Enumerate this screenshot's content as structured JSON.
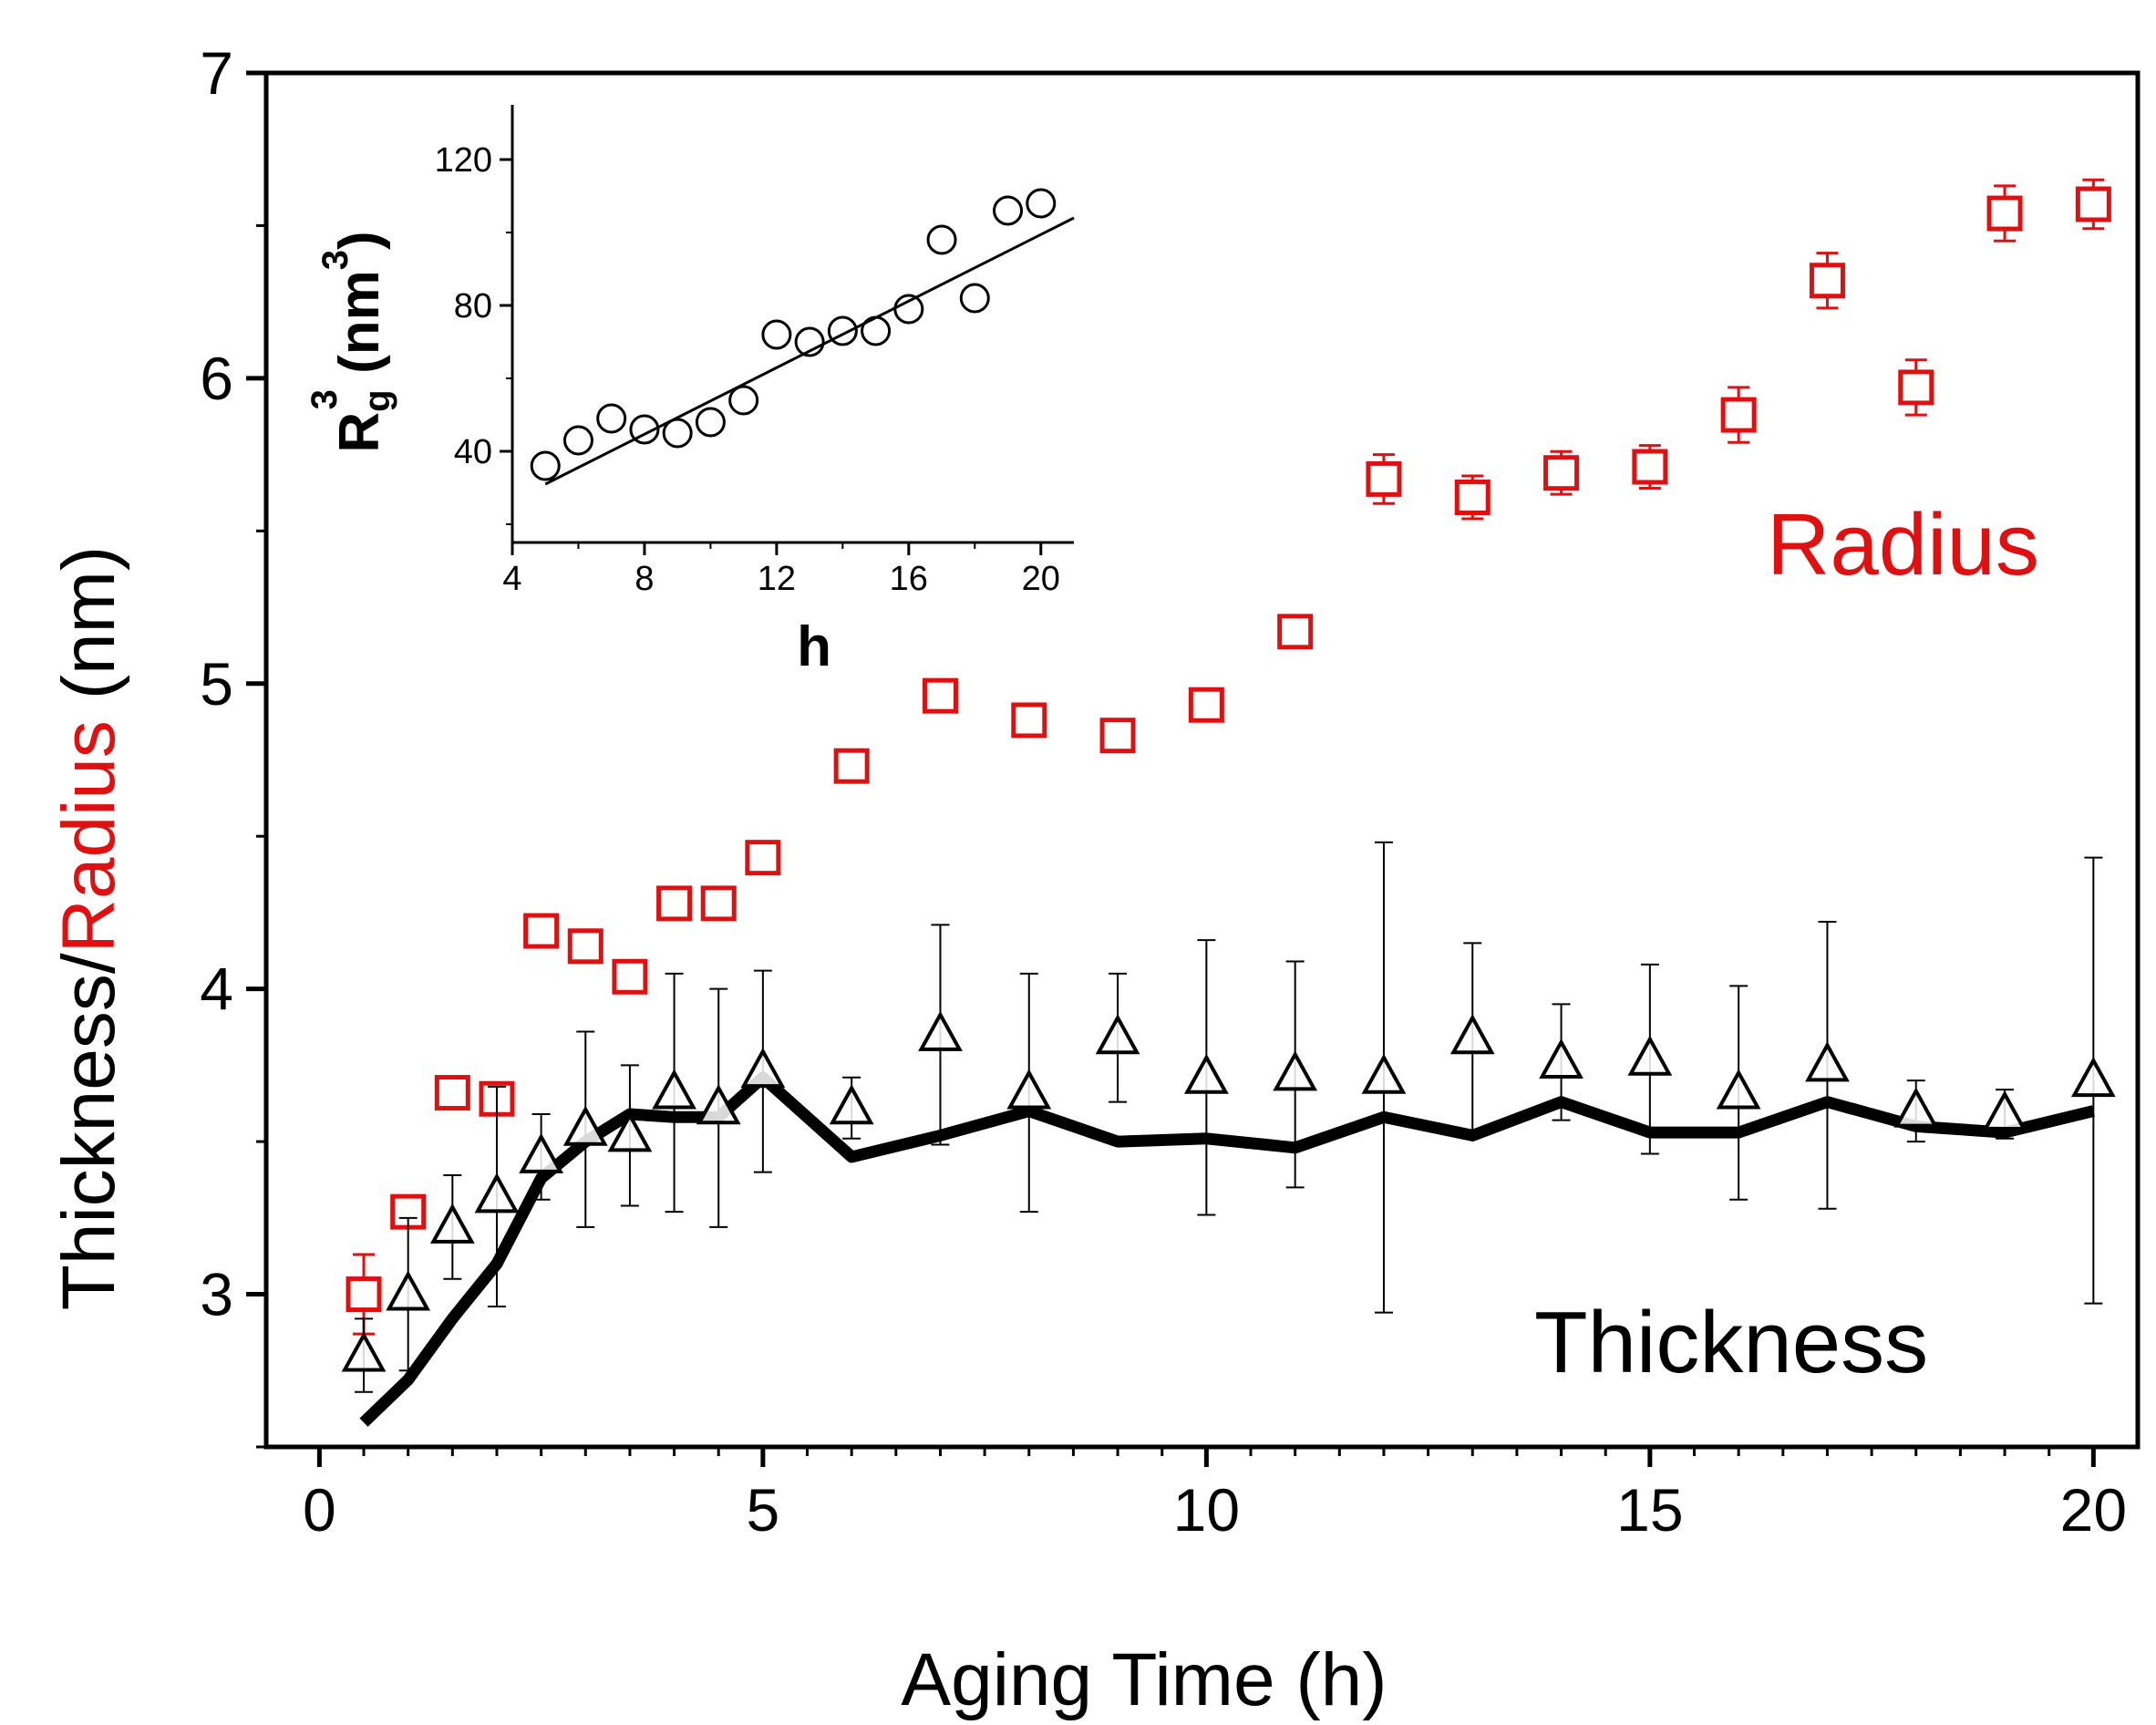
{
  "colors": {
    "thickness": "#000000",
    "radius": "#e01010",
    "axis": "#000000"
  },
  "chart_data": [
    {
      "type": "scatter",
      "title": "",
      "xlabel": "Aging Time (h)",
      "ylabel_parts": [
        "Thickness/",
        "Radius",
        " (nm)"
      ],
      "xlim": [
        -0.6,
        20.5
      ],
      "ylim": [
        2.5,
        7
      ],
      "xticks": [
        0,
        5,
        10,
        15,
        20
      ],
      "yticks": [
        3,
        4,
        5,
        6,
        7
      ],
      "x_tick_labels": [
        "0",
        "5",
        "10",
        "15",
        "20"
      ],
      "y_tick_labels": [
        "3",
        "4",
        "5",
        "6",
        "7"
      ],
      "series": [
        {
          "name": "Radius",
          "label": "Radius",
          "marker": "square",
          "x": [
            0.5,
            1,
            1.5,
            2,
            2.5,
            3,
            3.5,
            4,
            4.5,
            5,
            6,
            7,
            8,
            9,
            10,
            11,
            12,
            13,
            14,
            15,
            16,
            17,
            18,
            19,
            20
          ],
          "y": [
            3.0,
            3.27,
            3.66,
            3.64,
            4.19,
            4.14,
            4.04,
            4.28,
            4.28,
            4.43,
            4.73,
            4.96,
            4.88,
            4.83,
            4.93,
            5.17,
            5.67,
            5.61,
            5.69,
            5.71,
            5.88,
            6.32,
            5.97,
            6.54,
            6.57
          ],
          "err": [
            0.13,
            0.04,
            0.04,
            0.04,
            0.04,
            0.04,
            0.04,
            0.05,
            0.04,
            0.04,
            0.05,
            0.04,
            0.05,
            0.04,
            0.05,
            0.05,
            0.08,
            0.07,
            0.07,
            0.07,
            0.09,
            0.09,
            0.09,
            0.09,
            0.08
          ]
        },
        {
          "name": "Thickness",
          "label": "Thickness",
          "marker": "triangle",
          "x": [
            0.5,
            1,
            1.5,
            2,
            2.5,
            3,
            3.5,
            4,
            4.5,
            5,
            6,
            7,
            8,
            9,
            10,
            11,
            12,
            13,
            14,
            15,
            16,
            17,
            18,
            19,
            20
          ],
          "y": [
            2.8,
            3.0,
            3.22,
            3.32,
            3.45,
            3.54,
            3.52,
            3.66,
            3.61,
            3.73,
            3.61,
            3.85,
            3.66,
            3.84,
            3.71,
            3.72,
            3.71,
            3.84,
            3.76,
            3.77,
            3.66,
            3.75,
            3.6,
            3.59,
            3.7
          ],
          "err": [
            0.12,
            0.25,
            0.17,
            0.36,
            0.14,
            0.32,
            0.23,
            0.39,
            0.39,
            0.33,
            0.1,
            0.36,
            0.39,
            0.21,
            0.45,
            0.37,
            0.77,
            0.31,
            0.19,
            0.31,
            0.35,
            0.47,
            0.1,
            0.08,
            0.73
          ]
        },
        {
          "name": "Thickness fit",
          "marker": "line",
          "x": [
            0.5,
            1,
            1.5,
            2,
            2.5,
            3,
            3.5,
            4,
            4.5,
            5,
            6,
            7,
            8,
            9,
            10,
            11,
            12,
            13,
            14,
            15,
            16,
            17,
            18,
            19,
            20
          ],
          "y": [
            2.58,
            2.72,
            2.92,
            3.1,
            3.38,
            3.5,
            3.59,
            3.58,
            3.58,
            3.71,
            3.45,
            3.52,
            3.6,
            3.5,
            3.51,
            3.48,
            3.58,
            3.52,
            3.63,
            3.53,
            3.53,
            3.63,
            3.55,
            3.53,
            3.6
          ]
        }
      ]
    },
    {
      "type": "scatter",
      "title": "inset",
      "xlabel": "h",
      "ylabel": "R_g^3 (nm^3)",
      "ylabel_parts": [
        "R",
        "g",
        "3",
        " (nm",
        "3",
        ")"
      ],
      "xlim": [
        4,
        21
      ],
      "ylim": [
        15,
        135
      ],
      "xticks": [
        4,
        8,
        12,
        16,
        20
      ],
      "yticks": [
        40,
        80,
        120
      ],
      "x_tick_labels": [
        "4",
        "8",
        "12",
        "16",
        "20"
      ],
      "y_tick_labels": [
        "40",
        "80",
        "120"
      ],
      "series": [
        {
          "name": "Rg3",
          "marker": "circle",
          "x": [
            5,
            6,
            7,
            8,
            9,
            10,
            11,
            12,
            13,
            14,
            15,
            16,
            17,
            18,
            19,
            20
          ],
          "y": [
            36,
            43,
            49,
            46,
            45,
            48,
            54,
            72,
            70,
            73,
            73,
            79,
            98,
            82,
            106,
            108
          ]
        },
        {
          "name": "linear fit",
          "marker": "line",
          "x": [
            5,
            21
          ],
          "y": [
            31,
            104
          ]
        }
      ]
    }
  ]
}
